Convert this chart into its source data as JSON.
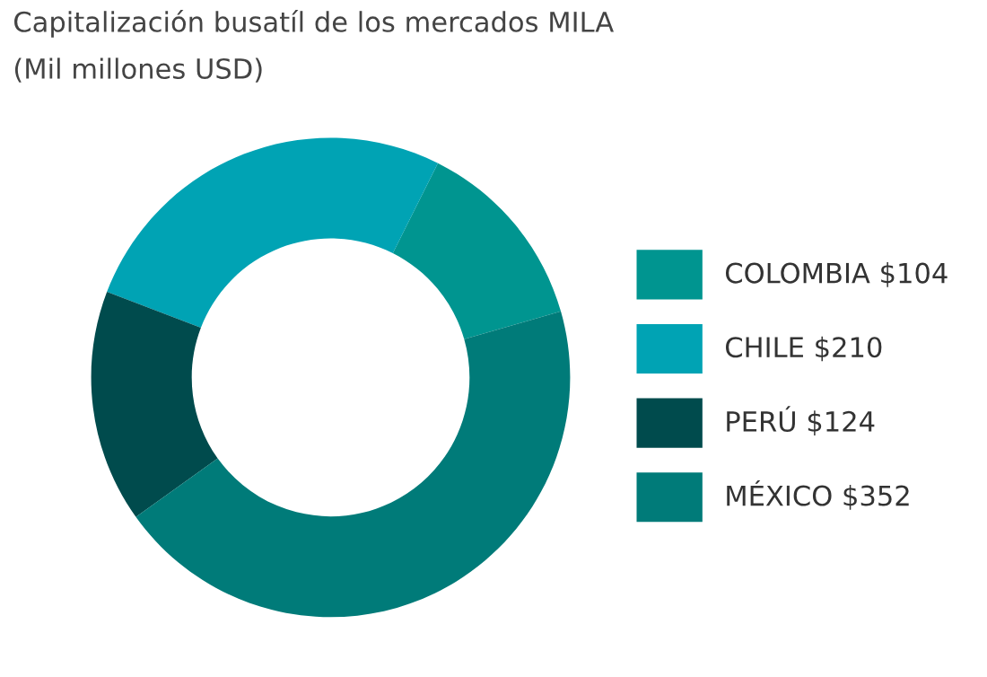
{
  "chart_data": {
    "type": "donut",
    "title": "Capitalización busatíl de los mercados MILA",
    "subtitle": "(Mil millones USD)",
    "categories": [
      "COLOMBIA",
      "CHILE",
      "PERÚ",
      "MÉXICO"
    ],
    "values": [
      104,
      210,
      124,
      352
    ],
    "value_labels": [
      "$104",
      "$210",
      "$124",
      "$352"
    ],
    "colors": [
      "#009590",
      "#00a3b4",
      "#004b4d",
      "#007b79"
    ],
    "legend": "right"
  }
}
